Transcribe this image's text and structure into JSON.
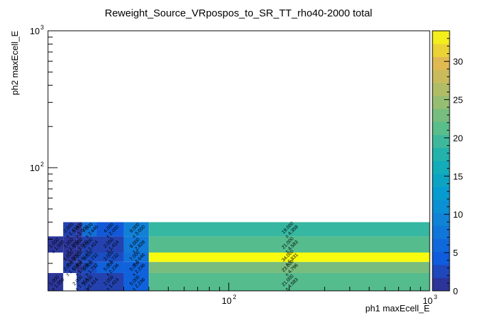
{
  "chart_data": {
    "type": "heatmap",
    "title": "Reweight_Source_VRpospos_to_SR_TT_rho40-2000 total",
    "xlabel": "ph1 maxEcell_E",
    "ylabel": "ph2 maxEcell_E",
    "x_scale": "log",
    "y_scale": "log",
    "xlim": [
      12.6,
      1000
    ],
    "ylim": [
      12.6,
      1000
    ],
    "x_ticks": [
      {
        "value": 100,
        "base": "10",
        "exp": "2"
      },
      {
        "value": 1000,
        "base": "10",
        "exp": "3"
      }
    ],
    "y_ticks": [
      {
        "value": 100,
        "base": "10",
        "exp": "2"
      },
      {
        "value": 1000,
        "base": "10",
        "exp": "3"
      }
    ],
    "x_edges": [
      12.6,
      15,
      17.5,
      18.6,
      22,
      30,
      40,
      1000
    ],
    "y_edges": [
      12.6,
      17,
      20.5,
      24,
      31.5,
      40,
      1000
    ],
    "z_range": [
      0,
      34
    ],
    "colorbar_ticks": [
      0,
      5,
      10,
      15,
      20,
      25,
      30
    ],
    "cells": [
      {
        "ix": 0,
        "iy": 0,
        "value": 1.0,
        "error": 1.0,
        "label": "1.000",
        "err_label": "± 1.000"
      },
      {
        "ix": 2,
        "iy": 0,
        "value": 2.0,
        "error": 1.414,
        "label": "2.000",
        "err_label": "± 1.414"
      },
      {
        "ix": 3,
        "iy": 0,
        "value": 2.0,
        "error": 1.414,
        "label": "2.000",
        "err_label": "± 1.414"
      },
      {
        "ix": 4,
        "iy": 0,
        "value": 2.0,
        "error": 1.414,
        "label": "2.000",
        "err_label": "± 1.414"
      },
      {
        "ix": 5,
        "iy": 0,
        "value": 5.0,
        "error": 2.236,
        "label": "5.000",
        "err_label": "± 2.236"
      },
      {
        "ix": 6,
        "iy": 0,
        "value": 21.0,
        "error": 4.583,
        "label": "21.000",
        "err_label": "± 4.583"
      },
      {
        "ix": 1,
        "iy": 1,
        "value": 2.0,
        "error": 1.414,
        "label": "2.000",
        "err_label": "± 1.414"
      },
      {
        "ix": 2,
        "iy": 1,
        "value": 1.0,
        "error": 1.0,
        "label": "1.000",
        "err_label": "± 1.000"
      },
      {
        "ix": 3,
        "iy": 1,
        "value": 3.0,
        "error": 1.732,
        "label": "3.000",
        "err_label": "± 1.732"
      },
      {
        "ix": 4,
        "iy": 1,
        "value": 5.0,
        "error": 2.236,
        "label": "5.000",
        "err_label": "± 2.236"
      },
      {
        "ix": 5,
        "iy": 1,
        "value": 5.0,
        "error": 2.236,
        "label": "5.000",
        "err_label": "± 2.236"
      },
      {
        "ix": 6,
        "iy": 1,
        "value": 23.0,
        "error": 4.796,
        "label": "23.000",
        "err_label": "± 4.796"
      },
      {
        "ix": 1,
        "iy": 2,
        "value": 1.0,
        "error": 1.0,
        "label": "1.000",
        "err_label": "± 1.000"
      },
      {
        "ix": 2,
        "iy": 2,
        "value": 2.0,
        "error": 1.414,
        "label": "2.000",
        "err_label": "± 1.414"
      },
      {
        "ix": 3,
        "iy": 2,
        "value": 3.0,
        "error": 1.732,
        "label": "3.000",
        "err_label": "± 1.732"
      },
      {
        "ix": 4,
        "iy": 2,
        "value": 3.0,
        "error": 1.732,
        "label": "3.000",
        "err_label": "± 1.732"
      },
      {
        "ix": 5,
        "iy": 2,
        "value": 7.0,
        "error": 2.646,
        "label": "7.000",
        "err_label": "± 2.646"
      },
      {
        "ix": 6,
        "iy": 2,
        "value": 34.0,
        "error": 5.831,
        "label": "34.000",
        "err_label": "± 5.831"
      },
      {
        "ix": 0,
        "iy": 3,
        "value": 1.0,
        "error": 1.0,
        "label": "1.000",
        "err_label": "± 1.000"
      },
      {
        "ix": 1,
        "iy": 3,
        "value": 1.0,
        "error": 1.0,
        "label": "1.000",
        "err_label": "± 1.000"
      },
      {
        "ix": 2,
        "iy": 3,
        "value": 1.0,
        "error": 1.0,
        "label": "1.000",
        "err_label": "± 1.000"
      },
      {
        "ix": 3,
        "iy": 3,
        "value": 2.0,
        "error": 1.414,
        "label": "2.000",
        "err_label": "± 1.414"
      },
      {
        "ix": 4,
        "iy": 3,
        "value": 2.0,
        "error": 1.414,
        "label": "2.000",
        "err_label": "± 1.414"
      },
      {
        "ix": 5,
        "iy": 3,
        "value": 8.0,
        "error": 2.828,
        "label": "8.000",
        "err_label": "± 2.828"
      },
      {
        "ix": 6,
        "iy": 3,
        "value": 21.0,
        "error": 4.583,
        "label": "21.000",
        "err_label": "± 4.583"
      },
      {
        "ix": 1,
        "iy": 4,
        "value": 2.0,
        "error": 1.414,
        "label": "2.000",
        "err_label": "± 1.414"
      },
      {
        "ix": 2,
        "iy": 4,
        "value": 1.0,
        "error": 1.0,
        "label": "1.000",
        "err_label": "± 1.000"
      },
      {
        "ix": 3,
        "iy": 4,
        "value": 7.0,
        "error": 2.646,
        "label": "7.000",
        "err_label": "± 2.646"
      },
      {
        "ix": 4,
        "iy": 4,
        "value": 4.0,
        "error": 2.0,
        "label": "4.000",
        "err_label": "± 2.000"
      },
      {
        "ix": 5,
        "iy": 4,
        "value": 9.0,
        "error": 3.0,
        "label": "9.000",
        "err_label": "± 3.000"
      },
      {
        "ix": 6,
        "iy": 4,
        "value": 19.0,
        "error": 4.359,
        "label": "19.000",
        "err_label": "± 4.359"
      }
    ]
  }
}
